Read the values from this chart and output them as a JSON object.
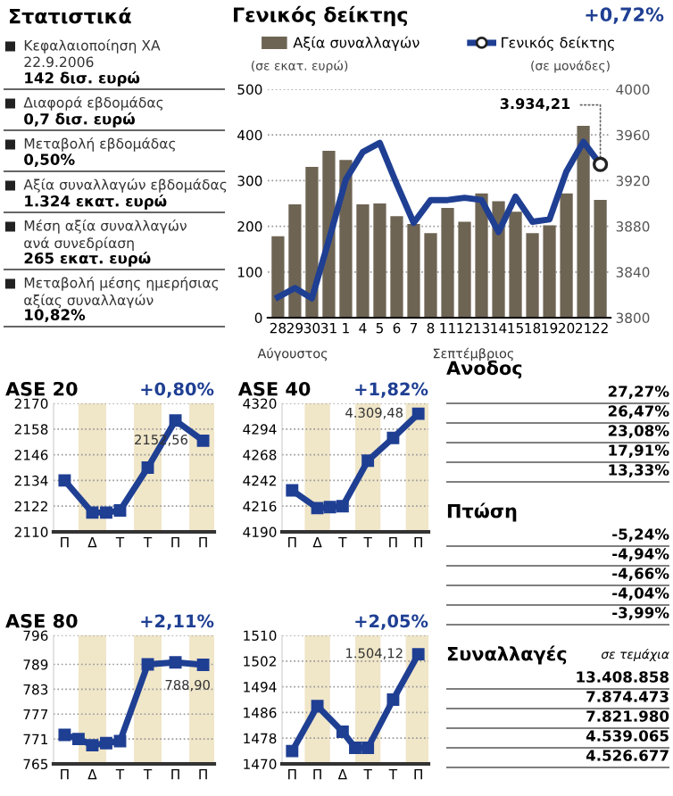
{
  "chart_data": [
    {
      "type": "other",
      "title": "Στατιστικά",
      "annotations": [
        "Κεφαλαιοποίηση ΧΑ\n22.9.2006",
        "142 δισ. ευρώ",
        "Διαφορά εβδομάδας",
        "0,7 δισ. ευρώ",
        "Μεταβολή εβδομάδας",
        "0,50%",
        "Αξία συναλλαγών εβδομάδας",
        "1.324 εκατ. ευρώ",
        "Μέση αξία συναλλαγών\nανά συνεδρίαση",
        "265 εκατ. ευρώ",
        "Μεταβολή μέσης ημερήσιας\nαξίας συναλλαγών",
        "10,82%"
      ]
    },
    {
      "type": "bar",
      "title": "Γενικός δείκτης",
      "subtitle": "+0,72%",
      "ylabel": "(σε εκατ. ευρώ)",
      "y2label": "(σε μονάδες)",
      "categories": [
        "28",
        "29",
        "30",
        "31",
        "1",
        "4",
        "5",
        "6",
        "7",
        "8",
        "11",
        "12",
        "13",
        "14",
        "15",
        "18",
        "19",
        "20",
        "21",
        "22"
      ],
      "series": [
        {
          "name": "Αξία συναλλαγών",
          "color": "#6e6454",
          "values": [
            178,
            248,
            330,
            365,
            345,
            248,
            250,
            222,
            205,
            185,
            240,
            210,
            272,
            255,
            232,
            185,
            202,
            272,
            420,
            258
          ]
        },
        {
          "name": "Γενικός δείκτης",
          "type": "line",
          "axis": "y2",
          "color": "#1f3f93",
          "values": [
            3818,
            3826,
            3817,
            3868,
            3921,
            3945,
            3953,
            3917,
            3883,
            3903,
            3903,
            3905,
            3903,
            3875,
            3906,
            3884,
            3886,
            3928,
            3954,
            3934.21
          ],
          "value_labels": [
            null,
            null,
            null,
            null,
            null,
            null,
            null,
            null,
            null,
            null,
            null,
            null,
            null,
            null,
            null,
            null,
            null,
            null,
            null,
            "3.934,21"
          ]
        }
      ],
      "ylim": [
        0,
        500
      ],
      "yticks": [
        0,
        100,
        200,
        300,
        400,
        500
      ],
      "y2lim": [
        3800,
        4000
      ],
      "y2ticks": [
        3800,
        3840,
        3880,
        3920,
        3960,
        4000
      ],
      "grid": "y",
      "legend": "top",
      "annotations": [
        "Αύγουστος",
        "Σεπτέμβριος"
      ]
    },
    {
      "type": "line",
      "title": "ASE 20",
      "subtitle": "+0,80%",
      "marker": "square",
      "grid": "y",
      "categories": [
        "Π",
        null,
        "Δ",
        null,
        "Τ",
        null,
        "Τ",
        null,
        "Π",
        null,
        "Π"
      ],
      "series": [
        {
          "color": "#1f3f93",
          "values": [
            2134,
            null,
            2119,
            2119,
            2120,
            null,
            2140,
            null,
            2162,
            null,
            2152.56
          ],
          "value_labels": [
            null,
            null,
            null,
            null,
            null,
            null,
            null,
            null,
            null,
            null,
            "2152,56"
          ]
        }
      ],
      "ylim": [
        2110,
        2170
      ],
      "yticks": [
        2110,
        2122,
        2134,
        2146,
        2158,
        2170
      ],
      "legend": false
    },
    {
      "type": "line",
      "title": "ASE 40",
      "subtitle": "+1,82%",
      "marker": "square",
      "grid": "y",
      "categories": [
        "Π",
        null,
        "Δ",
        null,
        "Τ",
        null,
        "Τ",
        null,
        "Π",
        null,
        "Π"
      ],
      "series": [
        {
          "color": "#1f3f93",
          "values": [
            4232,
            null,
            4214,
            4215,
            4216,
            null,
            4262,
            null,
            4285,
            null,
            4309.48
          ],
          "value_labels": [
            null,
            null,
            null,
            null,
            null,
            null,
            null,
            null,
            null,
            null,
            "4.309,48"
          ]
        }
      ],
      "ylim": [
        4190,
        4320
      ],
      "yticks": [
        4190,
        4216,
        4242,
        4268,
        4294,
        4320
      ],
      "legend": false
    },
    {
      "type": "line",
      "title": "ASE 80",
      "subtitle": "+2,11%",
      "marker": "square",
      "grid": "y",
      "categories": [
        "Π",
        null,
        "Δ",
        null,
        "Τ",
        null,
        "Τ",
        null,
        "Π",
        null,
        "Π"
      ],
      "series": [
        {
          "color": "#1f3f93",
          "values": [
            772,
            771,
            769.5,
            770,
            770.5,
            null,
            789,
            null,
            789.5,
            null,
            788.9
          ],
          "value_labels": [
            null,
            null,
            null,
            null,
            null,
            null,
            null,
            null,
            null,
            null,
            "788,90"
          ]
        }
      ],
      "ylim": [
        765,
        796
      ],
      "yticks": [
        765,
        771,
        777,
        783,
        789,
        796
      ],
      "legend": false
    },
    {
      "type": "line",
      "subtitle": "+2,05%",
      "marker": "square",
      "grid": "y",
      "categories": [
        "Π",
        null,
        "Π",
        null,
        "Δ",
        null,
        "Τ",
        null,
        "Τ",
        null,
        "Π"
      ],
      "series": [
        {
          "color": "#1f3f93",
          "values": [
            1474,
            null,
            1488,
            null,
            1480,
            1475,
            1475,
            null,
            1490,
            null,
            1504.12
          ],
          "value_labels": [
            null,
            null,
            null,
            null,
            null,
            null,
            null,
            null,
            null,
            null,
            "1.504,12"
          ]
        }
      ],
      "ylim": [
        1470,
        1510
      ],
      "yticks": [
        1470,
        1478,
        1486,
        1494,
        1502,
        1510
      ],
      "legend": false
    },
    {
      "type": "other",
      "title": "Ανοδος",
      "annotations": [
        "27,27%",
        "26,47%",
        "23,08%",
        "17,91%",
        "13,33%"
      ]
    },
    {
      "type": "other",
      "title": "Πτώση",
      "annotations": [
        "-5,24%",
        "-4,94%",
        "-4,66%",
        "-4,04%",
        "-3,99%"
      ]
    },
    {
      "type": "other",
      "title": "Συναλλαγές",
      "subtitle": "σε τεμάχια",
      "annotations": [
        "13.408.858",
        "7.874.473",
        "7.821.980",
        "4.539.065",
        "4.526.677"
      ]
    }
  ]
}
